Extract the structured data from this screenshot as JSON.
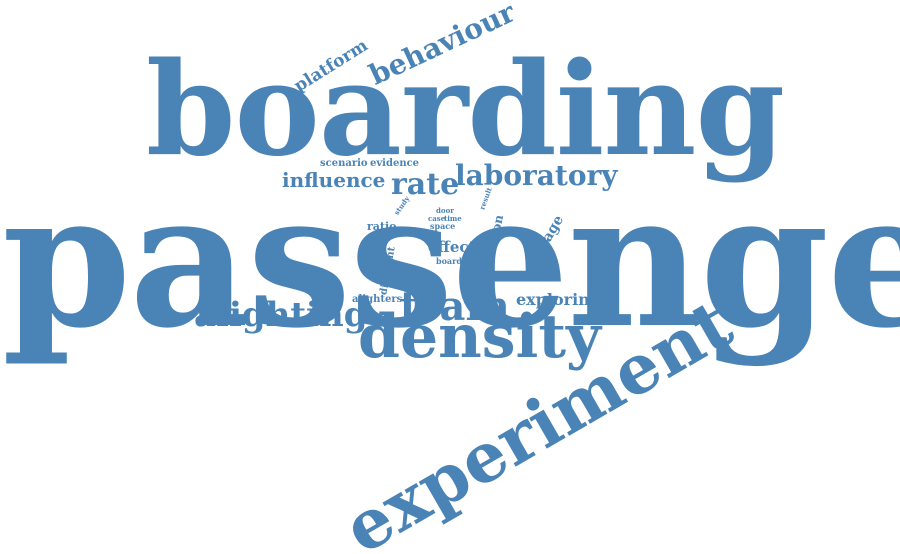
{
  "cloud": {
    "color": "#4a83b6",
    "words": [
      {
        "id": "passenger",
        "text": "passenger"
      },
      {
        "id": "boarding",
        "text": "boarding"
      },
      {
        "id": "experiment",
        "text": "experiment"
      },
      {
        "id": "density",
        "text": "density"
      },
      {
        "id": "train",
        "text": "train"
      },
      {
        "id": "alighting",
        "text": "alighting"
      },
      {
        "id": "laboratory",
        "text": "laboratory"
      },
      {
        "id": "rate",
        "text": "rate"
      },
      {
        "id": "influence",
        "text": "influence"
      },
      {
        "id": "behaviour",
        "text": "behaviour"
      },
      {
        "id": "platform",
        "text": "platform"
      },
      {
        "id": "exploring",
        "text": "exploring"
      },
      {
        "id": "effect",
        "text": "effect"
      },
      {
        "id": "carriage",
        "text": "carriage"
      },
      {
        "id": "station",
        "text": "station"
      },
      {
        "id": "scenario",
        "text": "scenario"
      },
      {
        "id": "evidence",
        "text": "evidence"
      },
      {
        "id": "ratio",
        "text": "ratio"
      },
      {
        "id": "different",
        "text": "different"
      },
      {
        "id": "alighters",
        "text": "alighters"
      },
      {
        "id": "board",
        "text": "board"
      },
      {
        "id": "door",
        "text": "door"
      },
      {
        "id": "case",
        "text": "case"
      },
      {
        "id": "time",
        "text": "time"
      },
      {
        "id": "space",
        "text": "space"
      },
      {
        "id": "study",
        "text": "study"
      },
      {
        "id": "result",
        "text": "result"
      }
    ]
  }
}
